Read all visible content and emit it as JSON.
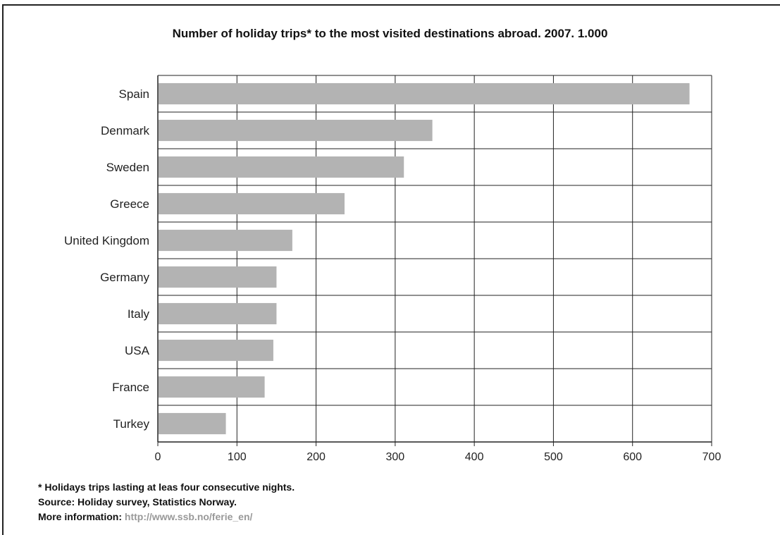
{
  "chart_data": {
    "type": "bar",
    "orientation": "horizontal",
    "title": "Number of holiday trips* to the most visited destinations abroad. 2007. 1.000",
    "categories": [
      "Spain",
      "Denmark",
      "Sweden",
      "Greece",
      "United Kingdom",
      "Germany",
      "Italy",
      "USA",
      "France",
      "Turkey"
    ],
    "values": [
      672,
      347,
      311,
      236,
      170,
      150,
      150,
      146,
      135,
      86
    ],
    "xlim": [
      0,
      700
    ],
    "xticks": [
      "0",
      "100",
      "200",
      "300",
      "400",
      "500",
      "600",
      "700"
    ],
    "grid": true,
    "colors": {
      "bar": "#b3b3b3",
      "grid": "#222222"
    }
  },
  "footnotes": {
    "note": "* Holidays trips lasting at leas four consecutive nights.",
    "source": "Source: Holiday survey, Statistics Norway.",
    "more_label": "More information:",
    "more_url": "http://www.ssb.no/ferie_en/"
  }
}
